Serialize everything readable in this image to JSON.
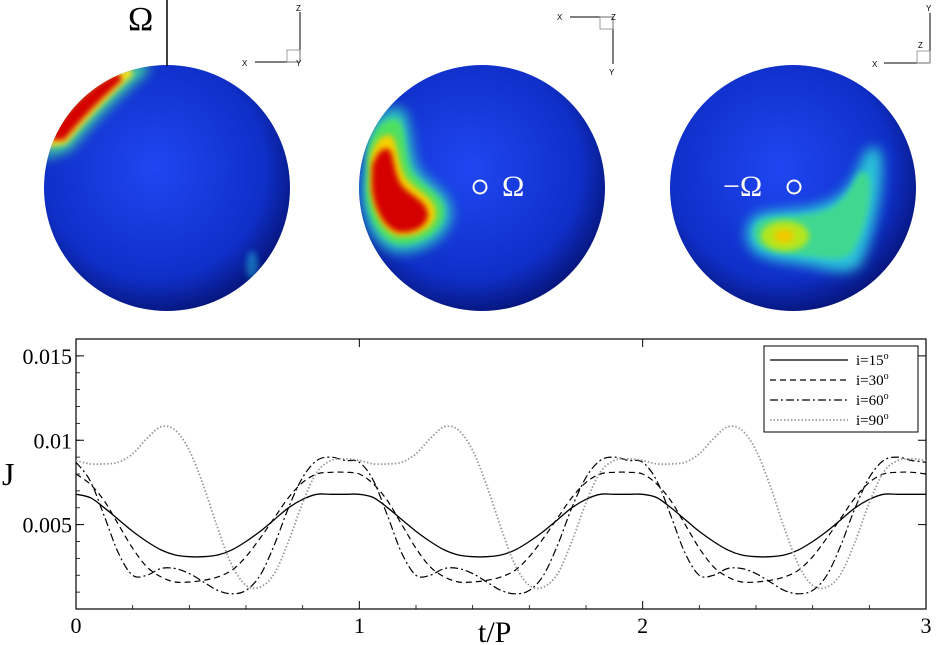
{
  "spheres": [
    {
      "omega_label": "Ω",
      "axes": {
        "up": "Z",
        "left": "X",
        "corner": "Y"
      },
      "blobs": [
        {
          "color": "#d40000",
          "level": "high"
        },
        {
          "color": "#22b5e0",
          "level": "low"
        }
      ]
    },
    {
      "omega_label": "Ω",
      "axes": {
        "up": "Y",
        "left": "X",
        "corner": "Z"
      },
      "blobs": [
        {
          "color": "#d40000",
          "level": "high"
        }
      ]
    },
    {
      "omega_label": "−Ω",
      "axes": {
        "up": "Y",
        "left": "X",
        "corner": "Z"
      },
      "blobs": [
        {
          "color": "#b5e61d",
          "level": "medium"
        }
      ]
    }
  ],
  "chart_data": {
    "type": "line",
    "xlabel": "t/P",
    "ylabel": "J",
    "xlim": [
      0,
      3
    ],
    "ylim": [
      0,
      0.016
    ],
    "xticks": [
      "0",
      "1",
      "2",
      "3"
    ],
    "yticks": [
      "0.005",
      "0.01",
      "0.015"
    ],
    "legend": "top-right",
    "grid": false,
    "x": [
      0,
      0.05,
      0.1,
      0.15,
      0.2,
      0.25,
      0.3,
      0.35,
      0.4,
      0.45,
      0.5,
      0.55,
      0.6,
      0.65,
      0.7,
      0.75,
      0.8,
      0.85,
      0.9,
      0.95,
      1.0,
      1.05,
      1.1,
      1.15,
      1.2,
      1.25,
      1.3,
      1.35,
      1.4,
      1.45,
      1.5,
      1.55,
      1.6,
      1.65,
      1.7,
      1.75,
      1.8,
      1.85,
      1.9,
      1.95,
      2.0,
      2.05,
      2.1,
      2.15,
      2.2,
      2.25,
      2.3,
      2.35,
      2.4,
      2.45,
      2.5,
      2.55,
      2.6,
      2.65,
      2.7,
      2.75,
      2.8,
      2.85,
      2.9,
      2.95,
      3.0
    ],
    "series": [
      {
        "name": "i=15",
        "style": "solid",
        "values": [
          0.0068,
          0.0066,
          0.006,
          0.0053,
          0.0046,
          0.004,
          0.0035,
          0.0032,
          0.0031,
          0.0031,
          0.0032,
          0.0035,
          0.004,
          0.0046,
          0.0053,
          0.006,
          0.0065,
          0.0068,
          0.0068,
          0.0068,
          0.0068,
          0.0066,
          0.006,
          0.0053,
          0.0046,
          0.004,
          0.0035,
          0.0032,
          0.0031,
          0.0031,
          0.0032,
          0.0035,
          0.004,
          0.0046,
          0.0053,
          0.006,
          0.0065,
          0.0068,
          0.0068,
          0.0068,
          0.0068,
          0.0066,
          0.006,
          0.0053,
          0.0046,
          0.004,
          0.0035,
          0.0032,
          0.0031,
          0.0031,
          0.0032,
          0.0035,
          0.004,
          0.0046,
          0.0053,
          0.006,
          0.0065,
          0.0068,
          0.0068,
          0.0068,
          0.0068
        ]
      },
      {
        "name": "i=30",
        "style": "dashed",
        "values": [
          0.008,
          0.0074,
          0.0064,
          0.005,
          0.0036,
          0.0025,
          0.0019,
          0.0016,
          0.0016,
          0.0017,
          0.0019,
          0.0023,
          0.0031,
          0.0042,
          0.0054,
          0.0066,
          0.0075,
          0.008,
          0.0081,
          0.0081,
          0.008,
          0.0074,
          0.0064,
          0.005,
          0.0036,
          0.0025,
          0.0019,
          0.0016,
          0.0016,
          0.0017,
          0.0019,
          0.0023,
          0.0031,
          0.0042,
          0.0054,
          0.0066,
          0.0075,
          0.008,
          0.0081,
          0.0081,
          0.008,
          0.0074,
          0.0064,
          0.005,
          0.0036,
          0.0025,
          0.0019,
          0.0016,
          0.0016,
          0.0017,
          0.0019,
          0.0023,
          0.0031,
          0.0042,
          0.0054,
          0.0066,
          0.0075,
          0.008,
          0.0081,
          0.0081,
          0.008
        ]
      },
      {
        "name": "i=60",
        "style": "dashdot",
        "values": [
          0.0087,
          0.0076,
          0.0055,
          0.0033,
          0.002,
          0.002,
          0.0024,
          0.0024,
          0.0021,
          0.0016,
          0.0011,
          0.0009,
          0.0011,
          0.002,
          0.0038,
          0.006,
          0.0078,
          0.0088,
          0.009,
          0.0088,
          0.0087,
          0.0076,
          0.0055,
          0.0033,
          0.002,
          0.002,
          0.0024,
          0.0024,
          0.0021,
          0.0016,
          0.0011,
          0.0009,
          0.0011,
          0.002,
          0.0038,
          0.006,
          0.0078,
          0.0088,
          0.009,
          0.0088,
          0.0087,
          0.0076,
          0.0055,
          0.0033,
          0.002,
          0.002,
          0.0024,
          0.0024,
          0.0021,
          0.0016,
          0.0011,
          0.0009,
          0.0011,
          0.002,
          0.0038,
          0.006,
          0.0078,
          0.0088,
          0.009,
          0.0088,
          0.0087
        ]
      },
      {
        "name": "i=90",
        "style": "dotted",
        "values": [
          0.0088,
          0.0086,
          0.0086,
          0.0087,
          0.0092,
          0.0101,
          0.0108,
          0.0106,
          0.0094,
          0.0073,
          0.0048,
          0.0026,
          0.0014,
          0.0013,
          0.0021,
          0.004,
          0.0063,
          0.0081,
          0.0088,
          0.0089,
          0.0088,
          0.0086,
          0.0086,
          0.0087,
          0.0092,
          0.0101,
          0.0108,
          0.0106,
          0.0094,
          0.0073,
          0.0048,
          0.0026,
          0.0014,
          0.0013,
          0.0021,
          0.004,
          0.0063,
          0.0081,
          0.0088,
          0.0089,
          0.0088,
          0.0086,
          0.0086,
          0.0087,
          0.0092,
          0.0101,
          0.0108,
          0.0106,
          0.0094,
          0.0073,
          0.0048,
          0.0026,
          0.0014,
          0.0013,
          0.0021,
          0.004,
          0.0063,
          0.0081,
          0.0088,
          0.0089,
          0.0088
        ]
      }
    ]
  }
}
